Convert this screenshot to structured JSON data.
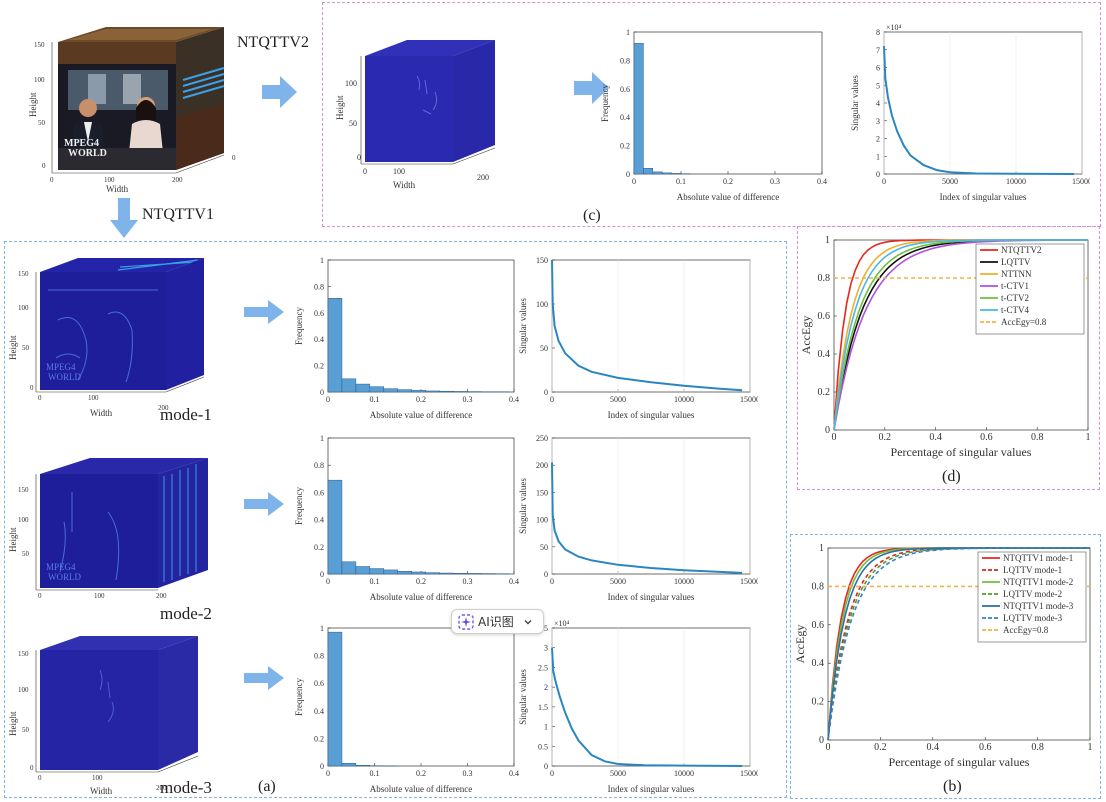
{
  "labels": {
    "ntqttv1": "NTQTTV1",
    "ntqttv2": "NTQTTV2",
    "mode1": "mode-1",
    "mode2": "mode-2",
    "mode3": "mode-3",
    "a": "(a)",
    "b": "(b)",
    "c": "(c)",
    "d": "(d)"
  },
  "cube_text": {
    "mpeg4": "MPEG4",
    "world": "WORLD",
    "height": "Height",
    "width": "Width"
  },
  "ai_button": {
    "label": "AI识图"
  },
  "colors": {
    "bar": "#5a9fd4",
    "curve": "#2a86c0",
    "panel_c_border": "#d88fd8",
    "panel_a_border": "#7fb6e0",
    "panel_d_border": "#d88fd8",
    "panel_b_border": "#7fb6e0",
    "arrow": "#7eb4ea"
  },
  "chart_data": [
    {
      "id": "hist-c",
      "type": "bar",
      "xlabel": "Absolute value of difference",
      "ylabel": "Frequency",
      "xlim": [
        0,
        0.4
      ],
      "ylim": [
        0,
        1
      ],
      "xticks": [
        "0",
        "0.1",
        "0.2",
        "0.3",
        "0.4"
      ],
      "yticks": [
        "0",
        "0.2",
        "0.4",
        "0.6",
        "0.8",
        "1"
      ],
      "bin_width": 0.02,
      "values": [
        0.92,
        0.04,
        0.015,
        0.008,
        0.004,
        0.002
      ]
    },
    {
      "id": "sv-c",
      "type": "line",
      "xlabel": "Index of singular values",
      "ylabel": "Singular values",
      "xlim": [
        0,
        15000
      ],
      "ylim": [
        0,
        8
      ],
      "xticks": [
        "0",
        "5000",
        "10000",
        "15000"
      ],
      "yticks": [
        "0",
        "1",
        "2",
        "3",
        "4",
        "5",
        "6",
        "7",
        "8"
      ],
      "multiplier": "×10⁴",
      "x": [
        0,
        100,
        300,
        600,
        1000,
        1500,
        2000,
        3000,
        4000,
        5000,
        7000,
        10000,
        14400
      ],
      "y": [
        7.2,
        5.4,
        4.3,
        3.3,
        2.4,
        1.6,
        1.05,
        0.5,
        0.22,
        0.1,
        0.03,
        0.01,
        0.0
      ]
    },
    {
      "id": "hist-a1",
      "type": "bar",
      "xlabel": "Absolute value of difference",
      "ylabel": "Frequency",
      "xlim": [
        0,
        0.4
      ],
      "ylim": [
        0,
        1
      ],
      "xticks": [
        "0",
        "0.1",
        "0.2",
        "0.3",
        "0.4"
      ],
      "yticks": [
        "0",
        "0.2",
        "0.4",
        "0.6",
        "0.8",
        "1"
      ],
      "bin_width": 0.03,
      "values": [
        0.71,
        0.1,
        0.06,
        0.04,
        0.025,
        0.018,
        0.012,
        0.008,
        0.006,
        0.004,
        0.003,
        0.002,
        0.002
      ]
    },
    {
      "id": "sv-a1",
      "type": "line",
      "xlabel": "Index of singular values",
      "ylabel": "Singular values",
      "xlim": [
        0,
        15000
      ],
      "ylim": [
        0,
        150
      ],
      "xticks": [
        "0",
        "5000",
        "10000",
        "15000"
      ],
      "yticks": [
        "0",
        "50",
        "100",
        "150"
      ],
      "x": [
        0,
        50,
        200,
        500,
        1000,
        2000,
        3000,
        5000,
        7500,
        10000,
        12500,
        14400
      ],
      "y": [
        150,
        100,
        75,
        58,
        44,
        30,
        23,
        16,
        11,
        7,
        4,
        2
      ]
    },
    {
      "id": "hist-a2",
      "type": "bar",
      "xlabel": "Absolute value of difference",
      "ylabel": "Frequency",
      "xlim": [
        0,
        0.4
      ],
      "ylim": [
        0,
        1
      ],
      "xticks": [
        "0",
        "0.1",
        "0.2",
        "0.3",
        "0.4"
      ],
      "yticks": [
        "0",
        "0.2",
        "0.4",
        "0.6",
        "0.8",
        "1"
      ],
      "bin_width": 0.03,
      "values": [
        0.69,
        0.09,
        0.055,
        0.04,
        0.03,
        0.02,
        0.015,
        0.01,
        0.007,
        0.005,
        0.004,
        0.003,
        0.002
      ]
    },
    {
      "id": "sv-a2",
      "type": "line",
      "xlabel": "Index of singular values",
      "ylabel": "Singular values",
      "xlim": [
        0,
        15000
      ],
      "ylim": [
        0,
        250
      ],
      "xticks": [
        "0",
        "5000",
        "10000",
        "15000"
      ],
      "yticks": [
        "0",
        "50",
        "100",
        "150",
        "200",
        "250"
      ],
      "x": [
        0,
        50,
        200,
        500,
        1000,
        2000,
        3000,
        5000,
        7500,
        10000,
        12500,
        14400
      ],
      "y": [
        205,
        110,
        80,
        60,
        45,
        32,
        25,
        17,
        11,
        7,
        4,
        2
      ]
    },
    {
      "id": "hist-a3",
      "type": "bar",
      "xlabel": "Absolute value of difference",
      "ylabel": "Frequency",
      "xlim": [
        0,
        0.4
      ],
      "ylim": [
        0,
        1
      ],
      "xticks": [
        "0",
        "0.1",
        "0.2",
        "0.3",
        "0.4"
      ],
      "yticks": [
        "0",
        "0.2",
        "0.4",
        "0.6",
        "0.8",
        "1"
      ],
      "bin_width": 0.03,
      "values": [
        0.97,
        0.02,
        0.005,
        0.002,
        0.001
      ]
    },
    {
      "id": "sv-a3",
      "type": "line",
      "xlabel": "Index of singular values",
      "ylabel": "Singular values",
      "xlim": [
        0,
        15000
      ],
      "ylim": [
        0,
        3.5
      ],
      "xticks": [
        "0",
        "5000",
        "10000",
        "15000"
      ],
      "yticks": [
        "0",
        "0.5",
        "1",
        "1.5",
        "2",
        "2.5",
        "3",
        "3.5"
      ],
      "multiplier": "×10⁴",
      "x": [
        0,
        100,
        300,
        600,
        1000,
        1500,
        2000,
        3000,
        4000,
        5000,
        7000,
        10000,
        14400
      ],
      "y": [
        3.0,
        2.4,
        2.1,
        1.75,
        1.35,
        0.95,
        0.65,
        0.28,
        0.12,
        0.05,
        0.02,
        0.01,
        0.0
      ]
    },
    {
      "id": "accegy-d",
      "type": "line",
      "xlabel": "Percentage of singular values",
      "ylabel": "AccEgy",
      "xlim": [
        0,
        1
      ],
      "ylim": [
        0,
        1
      ],
      "xticks": [
        "0",
        "0.2",
        "0.4",
        "0.6",
        "0.8",
        "1"
      ],
      "yticks": [
        "0",
        "0.2",
        "0.4",
        "0.6",
        "0.8",
        "1"
      ],
      "legend_position": "top-right",
      "series": [
        {
          "name": "NTQTTV2",
          "color": "#e8261e",
          "dash": false,
          "k": 22
        },
        {
          "name": "LQTTV",
          "color": "#111111",
          "dash": false,
          "k": 9
        },
        {
          "name": "NTTNN",
          "color": "#eeb12a",
          "dash": false,
          "k": 14
        },
        {
          "name": "t-CTV1",
          "color": "#b050e0",
          "dash": false,
          "k": 8
        },
        {
          "name": "t-CTV2",
          "color": "#6fbf3c",
          "dash": false,
          "k": 10
        },
        {
          "name": "t-CTV4",
          "color": "#48b8e8",
          "dash": false,
          "k": 12
        },
        {
          "name": "AccEgy=0.8",
          "color": "#f2b24a",
          "dash": true,
          "const": 0.8
        }
      ]
    },
    {
      "id": "accegy-b",
      "type": "line",
      "xlabel": "Percentage of singular values",
      "ylabel": "AccEgy",
      "xlim": [
        0,
        1
      ],
      "ylim": [
        0,
        1
      ],
      "xticks": [
        "0",
        "0.2",
        "0.4",
        "0.6",
        "0.8",
        "1"
      ],
      "yticks": [
        "0",
        "0.2",
        "0.4",
        "0.6",
        "0.8",
        "1"
      ],
      "legend_position": "top-right",
      "series": [
        {
          "name": "NTQTTV1 mode-1",
          "color": "#e8261e",
          "dash": false,
          "k": 20
        },
        {
          "name": "LQTTV mode-1",
          "color": "#d8261e",
          "dash": true,
          "k": 13
        },
        {
          "name": "NTQTTV1 mode-2",
          "color": "#6fbf3c",
          "dash": false,
          "k": 18
        },
        {
          "name": "LQTTV mode-2",
          "color": "#4f9f2c",
          "dash": true,
          "k": 12
        },
        {
          "name": "NTQTTV1 mode-3",
          "color": "#2a6fa8",
          "dash": false,
          "k": 16
        },
        {
          "name": "LQTTV mode-3",
          "color": "#3a7fc8",
          "dash": true,
          "k": 11
        },
        {
          "name": "AccEgy=0.8",
          "color": "#f2b24a",
          "dash": true,
          "const": 0.8
        }
      ]
    }
  ]
}
